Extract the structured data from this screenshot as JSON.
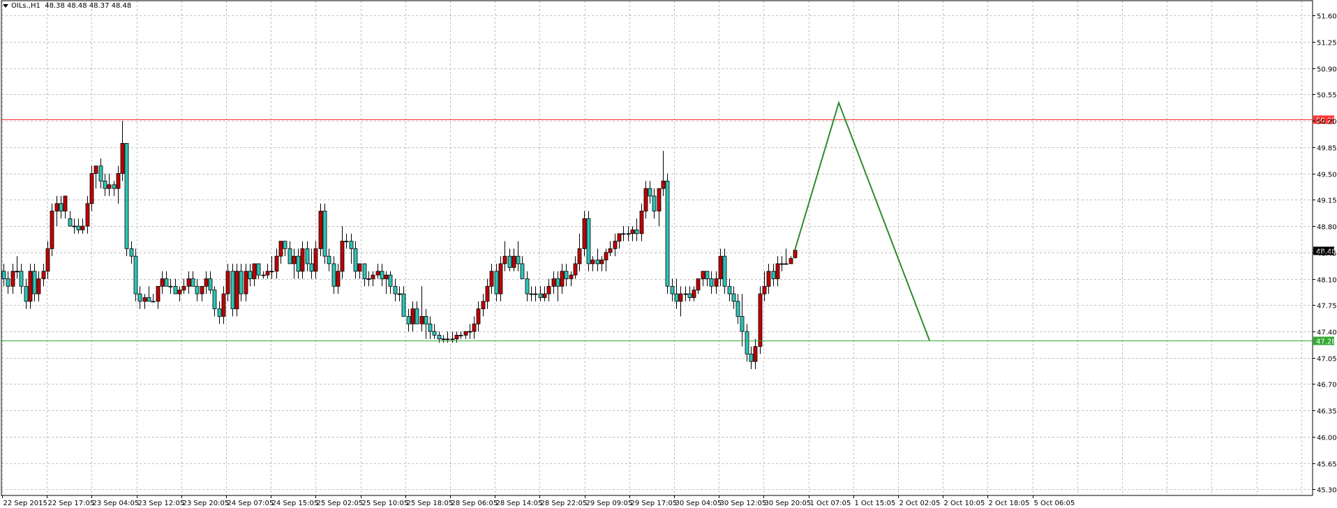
{
  "chart_header": {
    "symbol_tf": "OILs.,H1",
    "ohlc": "48.38 48.48 48.37 48.48"
  },
  "colors": {
    "bull_body": "#2ec4b6",
    "bear_body": "#c00000",
    "resistance": "#ff3333",
    "support": "#33aa33",
    "projection": "#2d8a2d",
    "grid": "#bfbfbf"
  },
  "chart_data": {
    "type": "candlestick",
    "yaxis": {
      "ticks": [
        "51.60",
        "51.25",
        "50.90",
        "50.55",
        "50.20",
        "49.85",
        "49.50",
        "49.15",
        "48.80",
        "48.45",
        "48.10",
        "47.75",
        "47.40",
        "47.05",
        "46.70",
        "46.35",
        "46.00",
        "45.65",
        "45.30"
      ],
      "ylim": [
        45.22,
        51.75
      ]
    },
    "xaxis": {
      "ticks": [
        "22 Sep 2015",
        "22 Sep 17:05",
        "23 Sep 04:05",
        "23 Sep 12:05",
        "23 Sep 20:05",
        "24 Sep 07:05",
        "24 Sep 15:05",
        "25 Sep 02:05",
        "25 Sep 10:05",
        "25 Sep 18:05",
        "28 Sep 06:05",
        "28 Sep 14:05",
        "28 Sep 22:05",
        "29 Sep 09:05",
        "29 Sep 17:05",
        "30 Sep 04:05",
        "30 Sep 12:05",
        "30 Sep 20:05",
        "1 Oct 07:05",
        "1 Oct 15:05",
        "2 Oct 02:05",
        "2 Oct 10:05",
        "2 Oct 18:05",
        "5 Oct 06:05"
      ]
    },
    "levels": [
      {
        "name": "resistance",
        "value": 50.22,
        "label": "50.22"
      },
      {
        "name": "current-price",
        "value": 48.48,
        "label": "48.48"
      },
      {
        "name": "support",
        "value": 47.28,
        "label": "47.28"
      }
    ],
    "projection_values": [
      48.48,
      50.44,
      47.28
    ],
    "candles": [
      [
        48.2,
        48.3,
        48.0,
        48.1
      ],
      [
        48.1,
        48.2,
        47.9,
        48.0
      ],
      [
        48.0,
        48.3,
        47.9,
        48.2
      ],
      [
        48.2,
        48.4,
        48.1,
        48.2
      ],
      [
        48.2,
        48.3,
        47.9,
        48.0
      ],
      [
        48.0,
        48.1,
        47.7,
        47.8
      ],
      [
        47.8,
        48.3,
        47.7,
        48.2
      ],
      [
        48.2,
        48.3,
        47.8,
        47.9
      ],
      [
        47.9,
        48.2,
        47.8,
        48.1
      ],
      [
        48.1,
        48.3,
        48.0,
        48.2
      ],
      [
        48.2,
        48.6,
        48.1,
        48.5
      ],
      [
        48.5,
        49.1,
        48.4,
        49.0
      ],
      [
        49.0,
        49.2,
        48.8,
        49.1
      ],
      [
        49.1,
        49.2,
        48.9,
        49.0
      ],
      [
        49.0,
        49.2,
        48.9,
        49.2
      ],
      [
        48.9,
        49.0,
        48.8,
        48.8
      ],
      [
        48.8,
        48.9,
        48.7,
        48.8
      ],
      [
        48.8,
        48.9,
        48.7,
        48.75
      ],
      [
        48.75,
        48.9,
        48.7,
        48.8
      ],
      [
        48.8,
        49.2,
        48.7,
        49.1
      ],
      [
        49.1,
        49.6,
        49.0,
        49.5
      ],
      [
        49.5,
        49.6,
        49.3,
        49.6
      ],
      [
        49.6,
        49.7,
        49.3,
        49.4
      ],
      [
        49.4,
        49.5,
        49.2,
        49.3
      ],
      [
        49.3,
        49.5,
        49.2,
        49.35
      ],
      [
        49.35,
        49.4,
        49.2,
        49.3
      ],
      [
        49.3,
        49.6,
        49.1,
        49.5
      ],
      [
        49.5,
        50.2,
        49.4,
        49.9
      ],
      [
        49.9,
        49.9,
        48.4,
        48.5
      ],
      [
        48.5,
        48.6,
        48.3,
        48.4
      ],
      [
        48.4,
        48.5,
        47.8,
        47.9
      ],
      [
        47.9,
        48.0,
        47.7,
        47.8
      ],
      [
        47.8,
        47.9,
        47.7,
        47.85
      ],
      [
        47.85,
        48.0,
        47.8,
        47.8
      ],
      [
        47.8,
        47.9,
        47.8,
        47.8
      ],
      [
        47.8,
        48.0,
        47.7,
        48.0
      ],
      [
        48.0,
        48.2,
        47.9,
        48.1
      ],
      [
        48.1,
        48.2,
        48.0,
        48.0
      ],
      [
        48.0,
        48.1,
        47.9,
        48.0
      ],
      [
        48.0,
        48.1,
        47.9,
        47.9
      ],
      [
        47.9,
        48.0,
        47.8,
        47.95
      ],
      [
        47.95,
        48.1,
        47.9,
        48.0
      ],
      [
        48.0,
        48.2,
        47.9,
        48.1
      ],
      [
        48.1,
        48.2,
        48.0,
        48.0
      ],
      [
        48.0,
        48.1,
        47.8,
        47.9
      ],
      [
        47.9,
        48.0,
        47.8,
        48.0
      ],
      [
        48.0,
        48.2,
        47.9,
        48.1
      ],
      [
        48.1,
        48.2,
        47.9,
        47.95
      ],
      [
        47.95,
        48.0,
        47.6,
        47.7
      ],
      [
        47.7,
        47.8,
        47.5,
        47.6
      ],
      [
        47.6,
        48.0,
        47.5,
        47.9
      ],
      [
        47.9,
        48.3,
        47.8,
        48.2
      ],
      [
        48.2,
        48.3,
        47.6,
        47.7
      ],
      [
        47.7,
        48.3,
        47.6,
        48.2
      ],
      [
        48.2,
        48.3,
        47.8,
        47.9
      ],
      [
        47.9,
        48.3,
        47.8,
        48.2
      ],
      [
        48.2,
        48.3,
        48.0,
        48.1
      ],
      [
        48.1,
        48.3,
        48.0,
        48.3
      ],
      [
        48.3,
        48.3,
        48.1,
        48.15
      ],
      [
        48.15,
        48.2,
        48.1,
        48.15
      ],
      [
        48.15,
        48.3,
        48.1,
        48.2
      ],
      [
        48.2,
        48.4,
        48.1,
        48.2
      ],
      [
        48.2,
        48.5,
        48.1,
        48.4
      ],
      [
        48.4,
        48.6,
        48.3,
        48.6
      ],
      [
        48.6,
        48.6,
        48.4,
        48.5
      ],
      [
        48.5,
        48.6,
        48.3,
        48.3
      ],
      [
        48.3,
        48.5,
        48.1,
        48.4
      ],
      [
        48.4,
        48.5,
        48.1,
        48.2
      ],
      [
        48.2,
        48.6,
        48.1,
        48.5
      ],
      [
        48.5,
        48.6,
        48.2,
        48.3
      ],
      [
        48.3,
        48.5,
        48.1,
        48.2
      ],
      [
        48.2,
        48.6,
        48.1,
        48.5
      ],
      [
        48.5,
        49.1,
        48.4,
        49.0
      ],
      [
        49.0,
        49.1,
        48.3,
        48.4
      ],
      [
        48.4,
        48.5,
        48.2,
        48.3
      ],
      [
        48.3,
        48.4,
        47.9,
        48.0
      ],
      [
        48.0,
        48.3,
        47.9,
        48.2
      ],
      [
        48.2,
        48.8,
        48.1,
        48.6
      ],
      [
        48.6,
        48.7,
        48.5,
        48.6
      ],
      [
        48.6,
        48.7,
        48.3,
        48.5
      ],
      [
        48.5,
        48.6,
        48.1,
        48.2
      ],
      [
        48.2,
        48.3,
        48.1,
        48.3
      ],
      [
        48.3,
        48.3,
        48.0,
        48.1
      ],
      [
        48.1,
        48.2,
        48.0,
        48.1
      ],
      [
        48.1,
        48.2,
        48.0,
        48.15
      ],
      [
        48.15,
        48.3,
        48.1,
        48.2
      ],
      [
        48.2,
        48.3,
        48.0,
        48.1
      ],
      [
        48.1,
        48.2,
        47.9,
        48.15
      ],
      [
        48.15,
        48.2,
        47.9,
        48.0
      ],
      [
        48.0,
        48.1,
        47.8,
        47.9
      ],
      [
        47.9,
        48.0,
        47.8,
        47.9
      ],
      [
        47.9,
        48.0,
        47.6,
        47.6
      ],
      [
        47.6,
        47.7,
        47.4,
        47.5
      ],
      [
        47.5,
        47.8,
        47.4,
        47.7
      ],
      [
        47.7,
        47.8,
        47.5,
        47.5
      ],
      [
        47.5,
        48.0,
        47.4,
        47.6
      ],
      [
        47.6,
        47.7,
        47.3,
        47.5
      ],
      [
        47.5,
        47.6,
        47.3,
        47.4
      ],
      [
        47.4,
        47.5,
        47.3,
        47.35
      ],
      [
        47.35,
        47.4,
        47.25,
        47.3
      ],
      [
        47.3,
        47.35,
        47.25,
        47.3
      ],
      [
        47.3,
        47.4,
        47.25,
        47.3
      ],
      [
        47.3,
        47.4,
        47.25,
        47.3
      ],
      [
        47.3,
        47.4,
        47.25,
        47.35
      ],
      [
        47.35,
        47.4,
        47.3,
        47.35
      ],
      [
        47.35,
        47.4,
        47.3,
        47.4
      ],
      [
        47.4,
        47.5,
        47.3,
        47.4
      ],
      [
        47.4,
        47.6,
        47.3,
        47.5
      ],
      [
        47.5,
        47.8,
        47.4,
        47.7
      ],
      [
        47.7,
        47.9,
        47.6,
        47.8
      ],
      [
        47.8,
        48.1,
        47.7,
        48.0
      ],
      [
        48.0,
        48.3,
        47.9,
        48.2
      ],
      [
        48.2,
        48.3,
        47.8,
        47.9
      ],
      [
        47.9,
        48.4,
        47.8,
        48.3
      ],
      [
        48.3,
        48.6,
        48.2,
        48.4
      ],
      [
        48.4,
        48.5,
        48.2,
        48.25
      ],
      [
        48.25,
        48.5,
        48.2,
        48.4
      ],
      [
        48.4,
        48.6,
        48.2,
        48.3
      ],
      [
        48.3,
        48.4,
        48.1,
        48.1
      ],
      [
        48.1,
        48.2,
        47.8,
        47.9
      ],
      [
        47.9,
        48.0,
        47.8,
        47.9
      ],
      [
        47.9,
        48.0,
        47.8,
        47.9
      ],
      [
        47.9,
        48.0,
        47.8,
        47.85
      ],
      [
        47.85,
        48.0,
        47.8,
        47.9
      ],
      [
        47.9,
        48.1,
        47.8,
        48.0
      ],
      [
        48.0,
        48.2,
        47.9,
        48.1
      ],
      [
        48.1,
        48.2,
        47.8,
        48.0
      ],
      [
        48.0,
        48.3,
        47.9,
        48.2
      ],
      [
        48.2,
        48.3,
        48.0,
        48.1
      ],
      [
        48.1,
        48.2,
        48.0,
        48.15
      ],
      [
        48.15,
        48.4,
        48.1,
        48.3
      ],
      [
        48.3,
        48.7,
        48.2,
        48.5
      ],
      [
        48.5,
        49.0,
        48.4,
        48.9
      ],
      [
        48.9,
        49.0,
        48.2,
        48.3
      ],
      [
        48.3,
        48.4,
        48.2,
        48.35
      ],
      [
        48.35,
        48.5,
        48.2,
        48.3
      ],
      [
        48.3,
        48.4,
        48.2,
        48.35
      ],
      [
        48.35,
        48.5,
        48.2,
        48.45
      ],
      [
        48.45,
        48.6,
        48.4,
        48.5
      ],
      [
        48.5,
        48.7,
        48.4,
        48.6
      ],
      [
        48.6,
        48.7,
        48.5,
        48.7
      ],
      [
        48.7,
        48.8,
        48.6,
        48.7
      ],
      [
        48.7,
        48.8,
        48.6,
        48.7
      ],
      [
        48.7,
        48.8,
        48.6,
        48.75
      ],
      [
        48.75,
        48.9,
        48.6,
        48.7
      ],
      [
        48.7,
        49.1,
        48.6,
        49.0
      ],
      [
        49.0,
        49.4,
        48.9,
        49.3
      ],
      [
        49.3,
        49.4,
        49.1,
        49.2
      ],
      [
        49.2,
        49.3,
        48.9,
        49.0
      ],
      [
        49.0,
        49.3,
        48.8,
        49.3
      ],
      [
        49.3,
        49.8,
        49.2,
        49.4
      ],
      [
        49.4,
        49.5,
        47.9,
        48.0
      ],
      [
        48.0,
        48.1,
        47.8,
        47.9
      ],
      [
        47.9,
        48.1,
        47.7,
        47.8
      ],
      [
        47.8,
        48.0,
        47.6,
        47.9
      ],
      [
        47.9,
        48.0,
        47.8,
        47.9
      ],
      [
        47.9,
        48.0,
        47.8,
        47.85
      ],
      [
        47.85,
        48.0,
        47.8,
        47.95
      ],
      [
        47.95,
        48.1,
        47.9,
        48.1
      ],
      [
        48.1,
        48.2,
        48.0,
        48.2
      ],
      [
        48.2,
        48.2,
        48.0,
        48.1
      ],
      [
        48.1,
        48.2,
        47.9,
        48.0
      ],
      [
        48.0,
        48.2,
        47.9,
        48.1
      ],
      [
        48.1,
        48.5,
        48.0,
        48.4
      ],
      [
        48.4,
        48.5,
        47.9,
        48.0
      ],
      [
        48.0,
        48.1,
        47.8,
        47.9
      ],
      [
        47.9,
        48.0,
        47.7,
        47.8
      ],
      [
        47.8,
        47.9,
        47.5,
        47.6
      ],
      [
        47.6,
        47.9,
        47.2,
        47.4
      ],
      [
        47.4,
        47.5,
        47.0,
        47.1
      ],
      [
        47.1,
        47.2,
        46.9,
        47.0
      ],
      [
        47.0,
        47.3,
        46.9,
        47.2
      ],
      [
        47.2,
        48.0,
        47.1,
        47.9
      ],
      [
        47.9,
        48.2,
        47.8,
        48.0
      ],
      [
        48.0,
        48.3,
        47.9,
        48.2
      ],
      [
        48.2,
        48.3,
        48.0,
        48.1
      ],
      [
        48.1,
        48.4,
        48.0,
        48.3
      ],
      [
        48.3,
        48.4,
        48.2,
        48.3
      ],
      [
        48.3,
        48.5,
        48.3,
        48.3
      ],
      [
        48.3,
        48.4,
        48.3,
        48.37
      ],
      [
        48.38,
        48.48,
        48.37,
        48.48
      ]
    ]
  }
}
